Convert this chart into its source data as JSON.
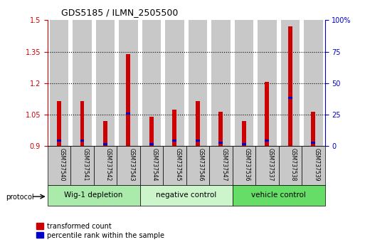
{
  "title": "GDS5185 / ILMN_2505500",
  "samples": [
    "GSM737540",
    "GSM737541",
    "GSM737542",
    "GSM737543",
    "GSM737544",
    "GSM737545",
    "GSM737546",
    "GSM737547",
    "GSM737536",
    "GSM737537",
    "GSM737538",
    "GSM737539"
  ],
  "red_values": [
    1.115,
    1.115,
    1.02,
    1.34,
    1.04,
    1.075,
    1.115,
    1.065,
    1.02,
    1.205,
    1.47,
    1.065
  ],
  "blue_values": [
    0.925,
    0.925,
    0.91,
    1.055,
    0.91,
    0.925,
    0.925,
    0.915,
    0.91,
    0.925,
    1.13,
    0.915
  ],
  "baseline": 0.9,
  "ylim_left": [
    0.9,
    1.5
  ],
  "ylim_right": [
    0,
    100
  ],
  "yticks_left": [
    0.9,
    1.05,
    1.2,
    1.35,
    1.5
  ],
  "yticks_right": [
    0,
    25,
    50,
    75,
    100
  ],
  "ytick_labels_left": [
    "0.9",
    "1.05",
    "1.2",
    "1.35",
    "1.5"
  ],
  "ytick_labels_right": [
    "0",
    "25",
    "50",
    "75",
    "100%"
  ],
  "groups": [
    {
      "label": "Wig-1 depletion",
      "start": 0,
      "end": 4,
      "color": "#aaeaaa"
    },
    {
      "label": "negative control",
      "start": 4,
      "end": 8,
      "color": "#ccf5cc"
    },
    {
      "label": "vehicle control",
      "start": 8,
      "end": 12,
      "color": "#66dd66"
    }
  ],
  "red_color": "#cc0000",
  "blue_color": "#0000cc",
  "bar_bg_color": "#c8c8c8",
  "legend_red": "transformed count",
  "legend_blue": "percentile rank within the sample"
}
